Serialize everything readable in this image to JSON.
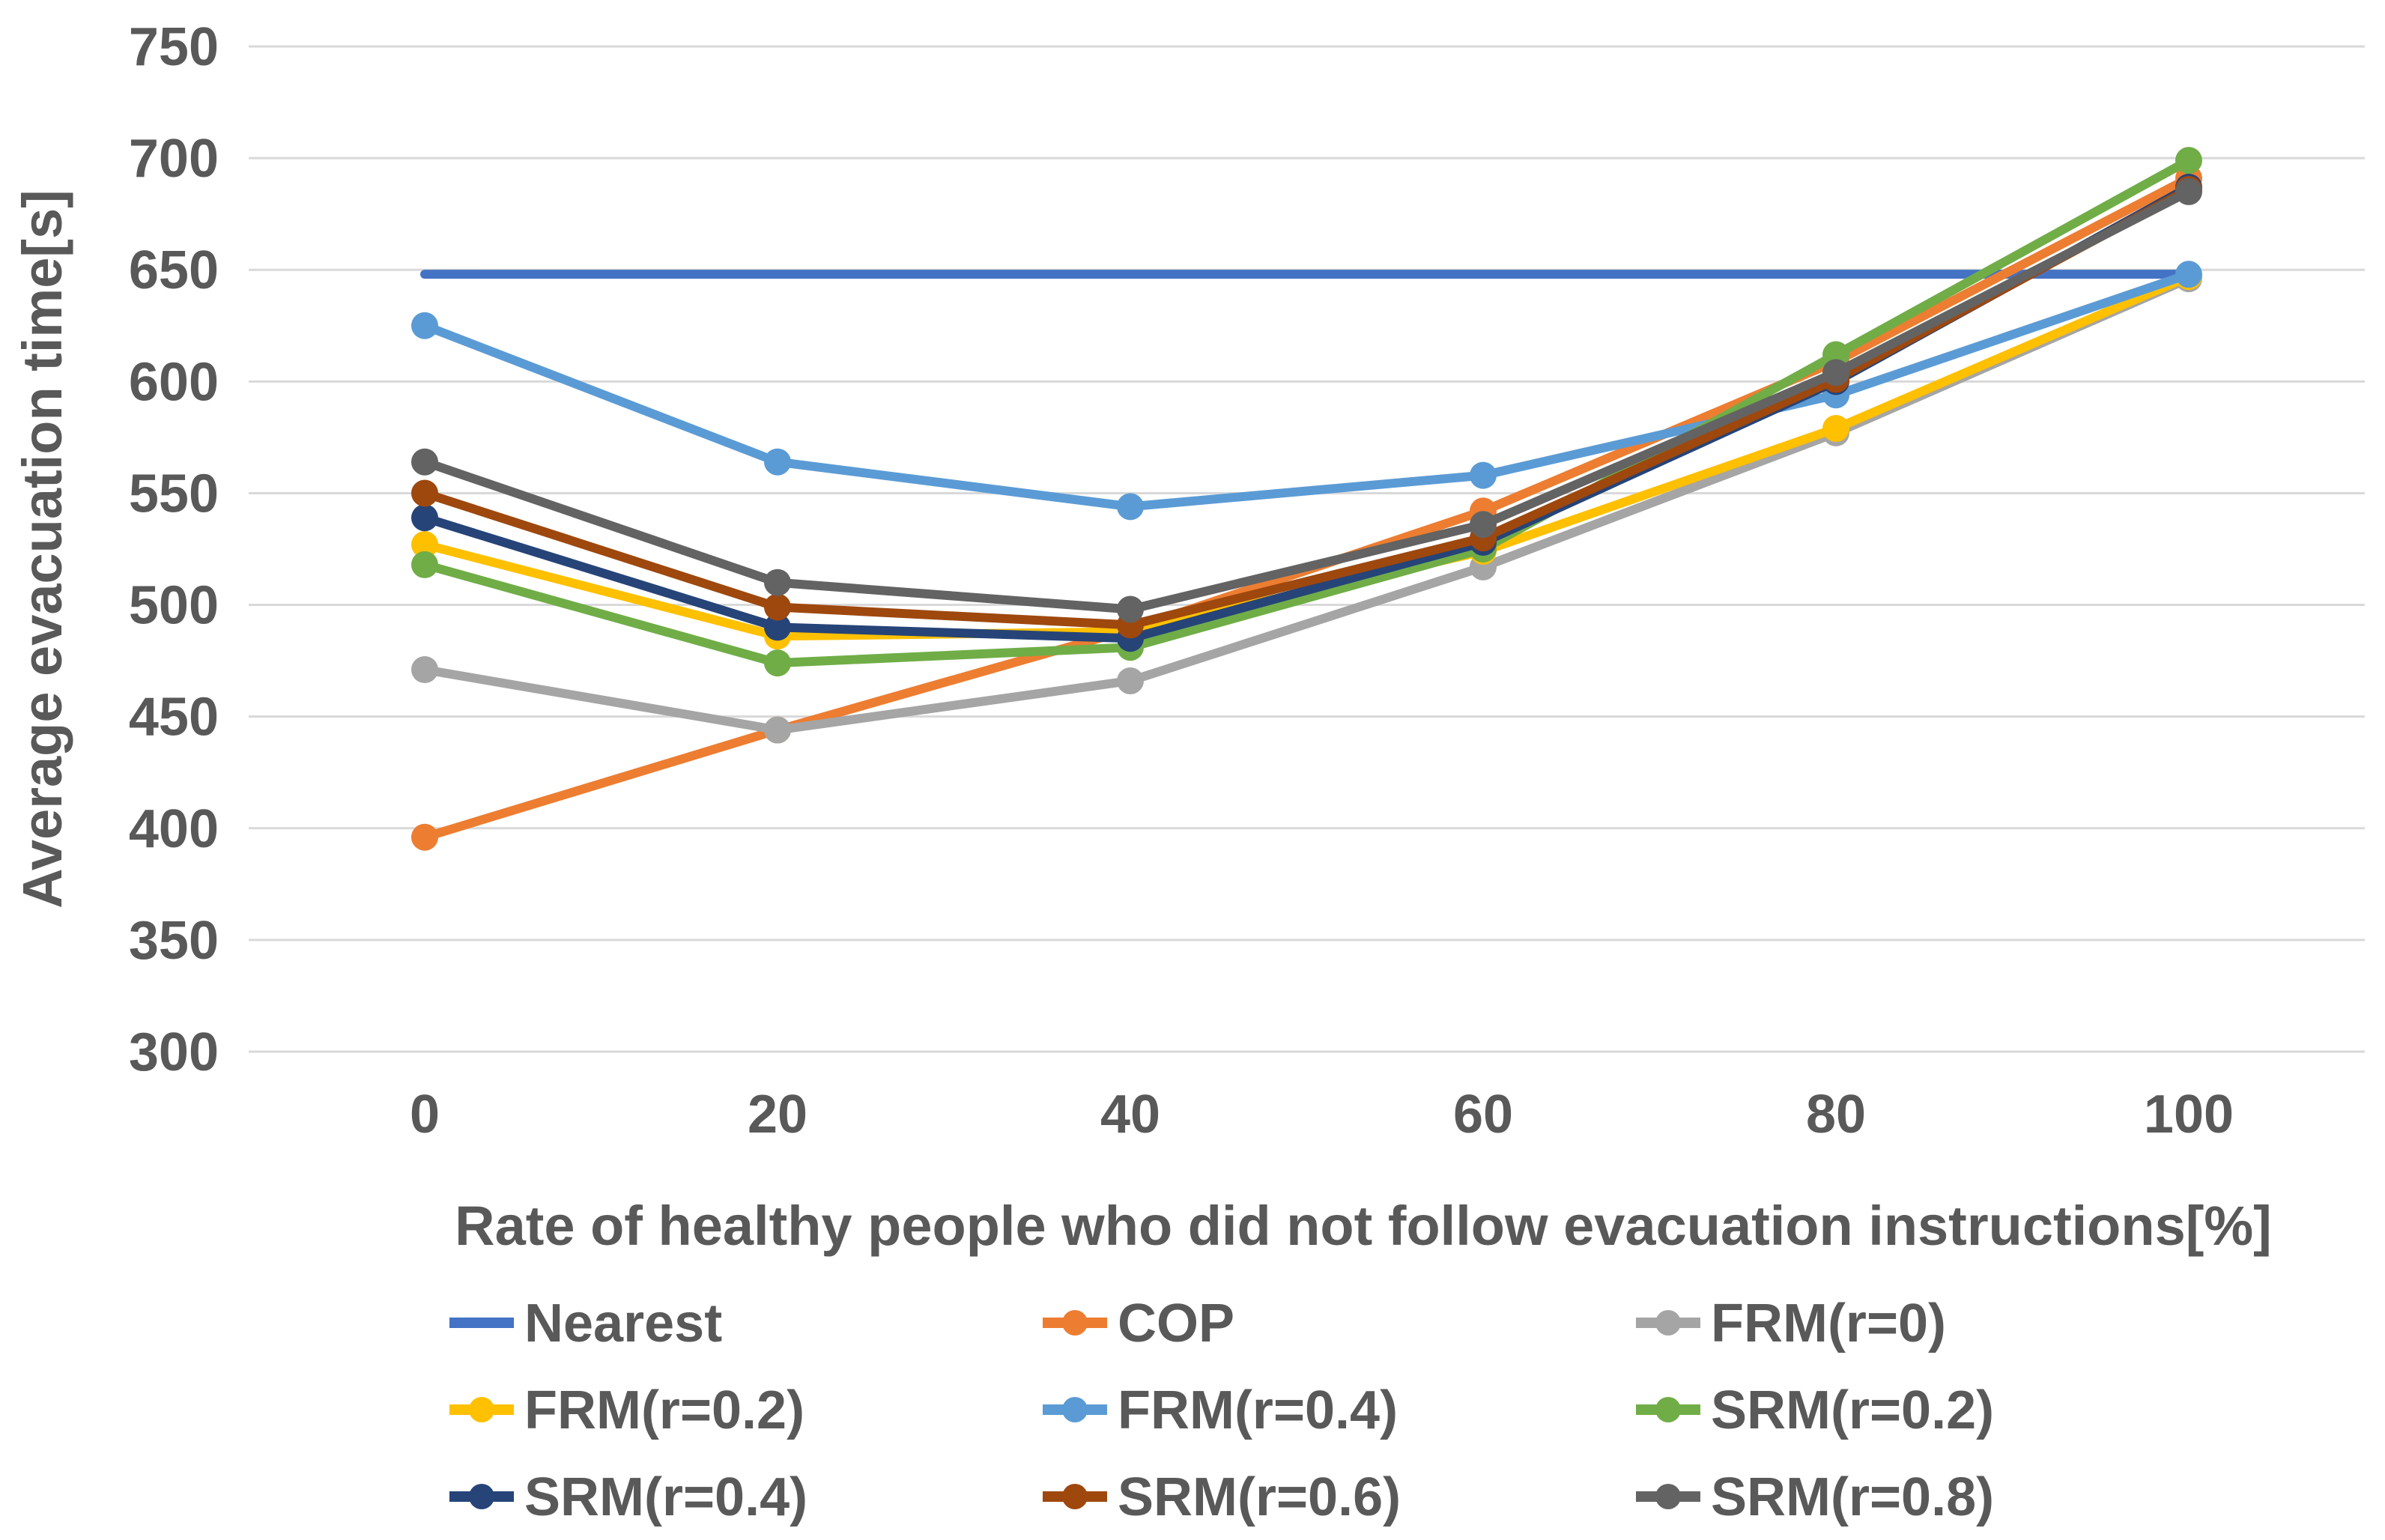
{
  "chart_data": {
    "type": "line",
    "x": [
      0,
      20,
      40,
      60,
      80,
      100
    ],
    "series": [
      {
        "name": "Nearest",
        "color": "#4472C4",
        "marker": false,
        "values": [
          648,
          648,
          648,
          648,
          648,
          648
        ]
      },
      {
        "name": "COP",
        "color": "#ED7D31",
        "marker": true,
        "values": [
          396,
          444,
          489,
          542,
          609,
          691
        ]
      },
      {
        "name": "FRM(r=0)",
        "color": "#A5A5A5",
        "marker": true,
        "values": [
          471,
          444,
          466,
          517,
          577,
          646
        ]
      },
      {
        "name": "FRM(r=0.2)",
        "color": "#FFC000",
        "marker": true,
        "values": [
          527,
          486,
          488,
          524,
          579,
          647
        ]
      },
      {
        "name": "FRM(r=0.4)",
        "color": "#5B9BD5",
        "marker": true,
        "values": [
          625,
          564,
          544,
          558,
          594,
          648
        ]
      },
      {
        "name": "SRM(r=0.2)",
        "color": "#70AD47",
        "marker": true,
        "values": [
          518,
          474,
          481,
          525,
          612,
          699
        ]
      },
      {
        "name": "SRM(r=0.4)",
        "color": "#264478",
        "marker": true,
        "values": [
          539,
          490,
          485,
          528,
          600,
          687
        ]
      },
      {
        "name": "SRM(r=0.6)",
        "color": "#9E480E",
        "marker": true,
        "values": [
          550,
          499,
          491,
          530,
          601,
          686
        ]
      },
      {
        "name": "SRM(r=0.8)",
        "color": "#636363",
        "marker": true,
        "values": [
          564,
          510,
          498,
          536,
          604,
          685
        ]
      }
    ],
    "title": "",
    "xlabel": "Rate of healthy people who did not follow evacuation instructions[%]",
    "ylabel": "Average evacuation time[s]",
    "ylim": [
      300,
      750
    ],
    "ytick_step": 50,
    "xticks": [
      "0",
      "20",
      "40",
      "60",
      "80",
      "100"
    ],
    "yticks": [
      "300",
      "350",
      "400",
      "450",
      "500",
      "550",
      "600",
      "650",
      "700",
      "750"
    ],
    "grid": true,
    "gridline_color": "#D9D9D9",
    "label_color": "#595959",
    "legend_position": "bottom",
    "legend_columns": 3
  }
}
